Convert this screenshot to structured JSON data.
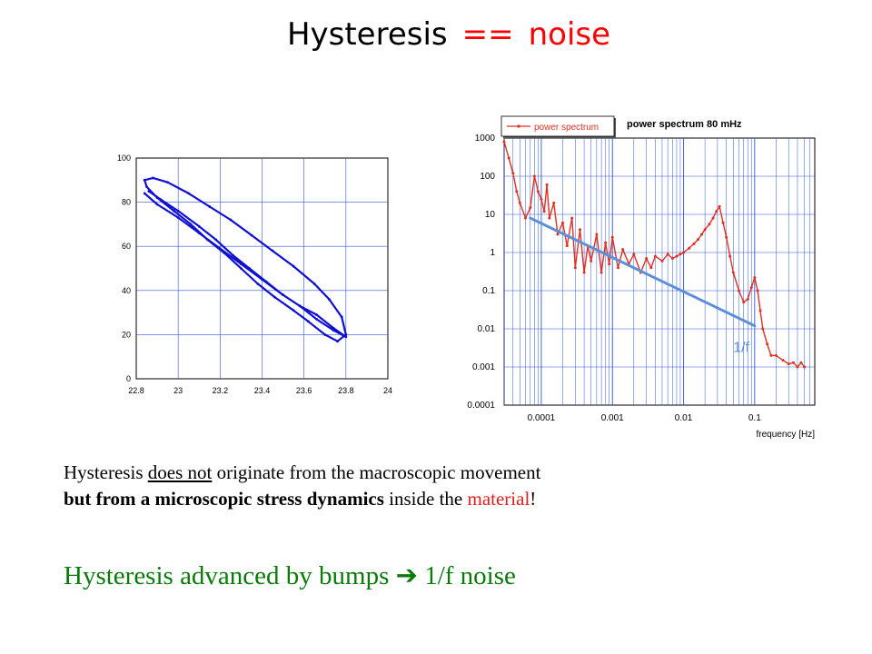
{
  "slide": {
    "title_a": "Hysteresis",
    "title_b": "==",
    "title_c": "noise",
    "line1_a": "Hysteresis ",
    "line1_b": "does not",
    "line1_c": " originate from the macroscopic movement",
    "line2_a": "but from a microscopic stress dynamics",
    "line2_b": " inside the ",
    "line2_c": "material",
    "line2_d": "!",
    "line3_a": "Hysteresis advanced by bumps ",
    "line3_arrow": "➔",
    "line3_b": " 1/f noise"
  },
  "chart_data": [
    {
      "type": "line",
      "title": "",
      "xlabel": "",
      "ylabel": "",
      "xlim": [
        22.8,
        24
      ],
      "ylim": [
        0,
        100
      ],
      "x_ticks": [
        "22.8",
        "23",
        "23.2",
        "23.4",
        "23.6",
        "23.8",
        "24"
      ],
      "y_ticks": [
        "0",
        "20",
        "40",
        "60",
        "80",
        "100"
      ],
      "grid": true,
      "color": "#1010d0",
      "series": [
        {
          "x": [
            22.84,
            22.88,
            22.95,
            23.05,
            23.15,
            23.25,
            23.35,
            23.45,
            23.55,
            23.65,
            23.72,
            23.78,
            23.8,
            23.76,
            23.7,
            23.62,
            23.55,
            23.46,
            23.38,
            23.3,
            23.22,
            23.14,
            23.06,
            22.98,
            22.9,
            22.85,
            22.84
          ],
          "y": [
            90,
            91,
            89,
            84,
            78,
            72,
            65,
            58,
            51,
            43,
            36,
            28,
            20,
            17,
            20,
            26,
            31,
            37,
            43,
            50,
            57,
            63,
            70,
            76,
            82,
            87,
            90
          ]
        },
        {
          "x": [
            22.84,
            22.9,
            23.0,
            23.1,
            23.2,
            23.3,
            23.4,
            23.5,
            23.58,
            23.66,
            23.74,
            23.8,
            23.74,
            23.66,
            23.58,
            23.5,
            23.42,
            23.34,
            23.26,
            23.18,
            23.1,
            23.0,
            22.92,
            22.86
          ],
          "y": [
            84,
            79,
            73,
            66,
            59,
            52,
            45,
            38,
            33,
            29,
            23,
            19,
            22,
            27,
            33,
            38,
            44,
            50,
            56,
            63,
            69,
            76,
            81,
            85
          ]
        }
      ]
    },
    {
      "type": "line",
      "title": "power spectrum 80 mHz",
      "xlabel": "frequency [Hz]",
      "ylabel": "",
      "x_scale": "log",
      "y_scale": "log",
      "xlim": [
        3e-05,
        0.7
      ],
      "ylim": [
        0.0001,
        1000
      ],
      "x_ticks": [
        "0.0001",
        "0.001",
        "0.01",
        "0.1"
      ],
      "y_ticks": [
        "1000",
        "100",
        "10",
        "1",
        "0.1",
        "0.01",
        "0.001",
        "0.0001"
      ],
      "legend": "top-left",
      "grid": true,
      "series": [
        {
          "name": "power spectrum",
          "color": "#e03020",
          "x": [
            3e-05,
            3.5e-05,
            4e-05,
            4.5e-05,
            5e-05,
            6e-05,
            7e-05,
            8e-05,
            9e-05,
            0.0001,
            0.00011,
            0.00012,
            0.00013,
            0.00015,
            0.00017,
            0.0002,
            0.00023,
            0.00027,
            0.0003,
            0.00035,
            0.0004,
            0.00045,
            0.0005,
            0.0006,
            0.0007,
            0.0008,
            0.0009,
            0.001,
            0.0012,
            0.0014,
            0.0017,
            0.002,
            0.0025,
            0.003,
            0.0035,
            0.004,
            0.005,
            0.006,
            0.007,
            0.008,
            0.009,
            0.01,
            0.012,
            0.014,
            0.016,
            0.018,
            0.02,
            0.023,
            0.026,
            0.029,
            0.032,
            0.036,
            0.04,
            0.045,
            0.05,
            0.06,
            0.07,
            0.08,
            0.09,
            0.1,
            0.11,
            0.12,
            0.13,
            0.15,
            0.17,
            0.2,
            0.25,
            0.3,
            0.35,
            0.4,
            0.45,
            0.5
          ],
          "y": [
            800,
            300,
            120,
            40,
            20,
            8,
            15,
            100,
            40,
            25,
            12,
            60,
            8,
            20,
            3,
            6,
            1.5,
            8,
            0.4,
            4,
            0.3,
            1.5,
            0.6,
            3,
            0.3,
            1.8,
            0.5,
            2.5,
            0.4,
            1.2,
            0.5,
            0.9,
            0.3,
            0.7,
            0.4,
            0.8,
            0.6,
            0.9,
            0.7,
            0.8,
            0.9,
            1.0,
            1.3,
            1.7,
            2.2,
            3,
            4,
            5.5,
            8,
            12,
            16,
            6,
            2.5,
            0.8,
            0.3,
            0.1,
            0.05,
            0.06,
            0.12,
            0.22,
            0.1,
            0.03,
            0.01,
            0.004,
            0.002,
            0.002,
            0.0015,
            0.0012,
            0.0013,
            0.001,
            0.0013,
            0.001
          ]
        }
      ],
      "fit_line": {
        "label": "1/f",
        "color": "#5b8fd6",
        "x": [
          7e-05,
          0.1
        ],
        "y": [
          8,
          0.012
        ]
      }
    }
  ]
}
